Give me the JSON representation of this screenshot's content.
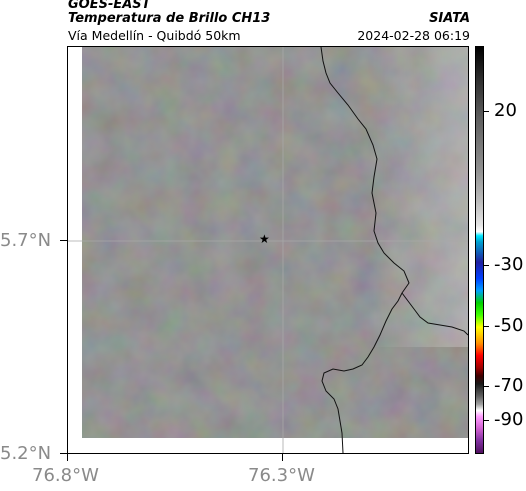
{
  "header": {
    "satellite": "GOES-EAST",
    "product": "Temperatura de Brillo CH13",
    "organization": "SIATA",
    "area": "Vía Medellín - Quibdó 50km",
    "datetime": "2024-02-28 06:19"
  },
  "map": {
    "lat_labels": [
      "5.7°N",
      "5.2°N"
    ],
    "lon_labels": [
      "76.8°W",
      "76.3°W"
    ],
    "marker_icon": "star-icon",
    "colors": {
      "field": "#808080",
      "border": "#000000",
      "grid": "#b0b0b0"
    }
  },
  "colorbar": {
    "ticks": [
      "20",
      "-30",
      "-50",
      "-70",
      "-90"
    ]
  }
}
